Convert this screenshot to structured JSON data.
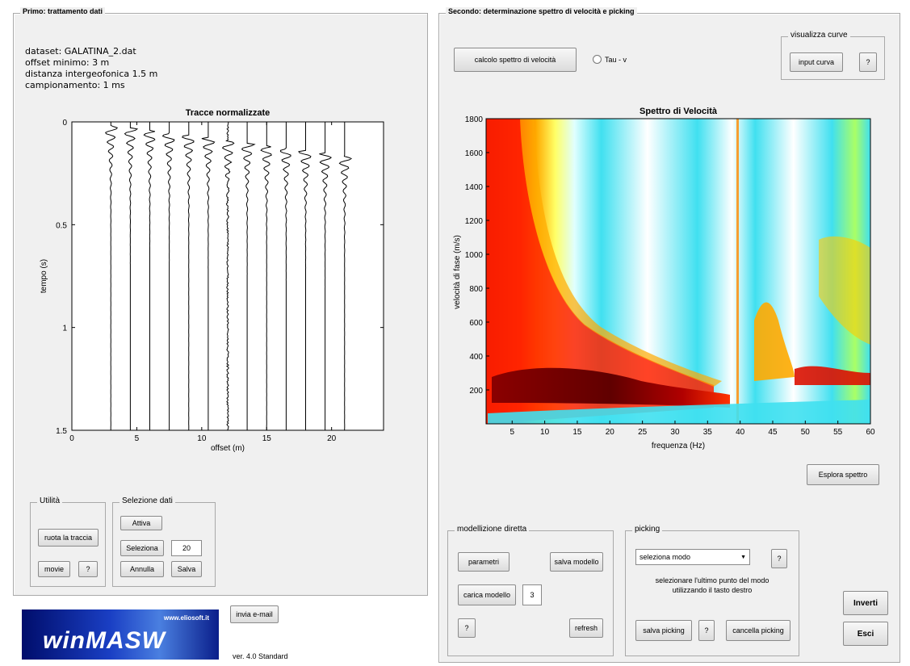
{
  "left_panel": {
    "title": "Primo: trattamento dati",
    "info": {
      "dataset": "dataset: GALATINA_2.dat",
      "offset": "offset minimo: 3 m",
      "distance": "distanza intergeofonica 1.5 m",
      "sampling": "campionamento: 1 ms"
    },
    "chart_title": "Tracce normalizzate",
    "utilita": {
      "title": "Utilità",
      "ruota_label": "ruota la traccia",
      "movie_label": "movie",
      "help_label": "?"
    },
    "selezione": {
      "title": "Selezione dati",
      "attiva_label": "Attiva",
      "seleziona_label": "Seleziona",
      "count_value": "20",
      "annulla_label": "Annulla",
      "salva_label": "Salva"
    },
    "logo": {
      "url_text": "www.eliosoft.it",
      "brand": "winMASW"
    },
    "email_label": "invia e-mail",
    "version": "ver. 4.0 Standard"
  },
  "right_panel": {
    "title": "Secondo: determinazione spettro di velocità e picking",
    "calcolo_label": "calcolo spettro di velocità",
    "tau_label": "Tau - v",
    "visualizza": {
      "title": "visualizza curve",
      "input_label": "input curva",
      "help_label": "?"
    },
    "chart_title": "Spettro di Velocità",
    "esplora_label": "Esplora spettro",
    "modellizione": {
      "title": "modellizione diretta",
      "parametri_label": "parametri",
      "salva_modello_label": "salva modello",
      "carica_label": "carica modello",
      "carica_value": "3",
      "help_label": "?",
      "refresh_label": "refresh"
    },
    "picking": {
      "title": "picking",
      "select_value": "seleziona modo",
      "help_label": "?",
      "instruction_1": "selezionare l'ultimo punto del modo",
      "instruction_2": "utilizzando il tasto destro",
      "salva_label": "salva picking",
      "help2_label": "?",
      "cancella_label": "cancella picking"
    },
    "inverti_label": "Inverti",
    "esci_label": "Esci"
  },
  "chart_data": [
    {
      "type": "line",
      "title": "Tracce normalizzate",
      "xlabel": "offset (m)",
      "ylabel": "tempo (s)",
      "xlim": [
        0,
        24
      ],
      "ylim": [
        0,
        1.5
      ],
      "y_reversed": true,
      "xticks": [
        "0",
        "5",
        "10",
        "15",
        "20"
      ],
      "yticks": [
        "0",
        "0.5",
        "1",
        "1.5"
      ],
      "x": [
        3,
        4.5,
        6,
        7.5,
        9,
        10.5,
        12,
        13.5,
        15,
        16.5,
        18,
        19.5,
        21
      ]
    },
    {
      "type": "heatmap",
      "title": "Spettro di Velocità",
      "xlabel": "frequenza (Hz)",
      "ylabel": "velocità di fase (m/s)",
      "xlim": [
        1,
        60
      ],
      "ylim": [
        0,
        1800
      ],
      "xticks": [
        "5",
        "10",
        "15",
        "20",
        "25",
        "30",
        "35",
        "40",
        "45",
        "50",
        "55",
        "60"
      ],
      "yticks": [
        "200",
        "400",
        "600",
        "800",
        "1000",
        "1200",
        "1400",
        "1600",
        "1800"
      ],
      "colormap": [
        "#00008b",
        "#00bfff",
        "#ffffff",
        "#ffff00",
        "#ff8c00",
        "#ff0000",
        "#8b0000"
      ]
    }
  ]
}
